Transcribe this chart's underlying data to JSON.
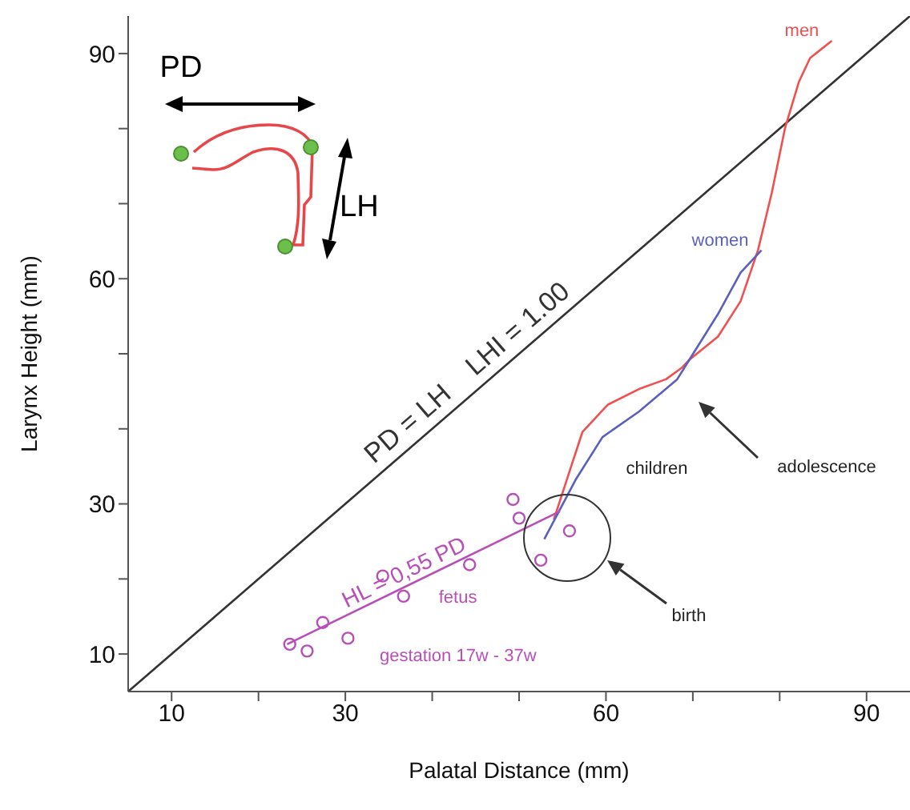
{
  "chart_data": {
    "type": "line",
    "xlabel": "Palatal Distance (mm)",
    "ylabel": "Larynx Height (mm)",
    "xlim": [
      5,
      95
    ],
    "ylim": [
      5,
      95
    ],
    "xticks": [
      10,
      {
        "value": 20,
        "label": null
      },
      30,
      {
        "value": 40,
        "label": null
      },
      {
        "value": 50,
        "label": null
      },
      60,
      {
        "value": 70,
        "label": null
      },
      {
        "value": 80,
        "label": null
      },
      90
    ],
    "yticks": [
      10,
      {
        "value": 20,
        "label": null
      },
      30,
      {
        "value": 40,
        "label": null
      },
      {
        "value": 50,
        "label": null
      },
      60,
      {
        "value": 70,
        "label": null
      },
      {
        "value": 80,
        "label": null
      },
      90
    ],
    "series": [
      {
        "name": "PD = LH    LHI = 1.00",
        "color": "#333333",
        "x": [
          5,
          95
        ],
        "values": [
          5,
          95
        ]
      },
      {
        "name": "men",
        "color": "#f0504f",
        "x": [
          54,
          55.6,
          57.3,
          60.2,
          63.8,
          66.9,
          68.7,
          69.6,
          72.9,
          75.5,
          77.5,
          79.1,
          80.6,
          82.2,
          83.5,
          86
        ],
        "values": [
          27.9,
          33.6,
          39.6,
          43.2,
          45.3,
          46.6,
          48.1,
          49.2,
          52.3,
          57,
          63.8,
          71.5,
          80,
          86.2,
          89.4,
          91.7
        ]
      },
      {
        "name": "women",
        "color": "#5a5fc0",
        "x": [
          52.9,
          56.5,
          59.6,
          63.8,
          68.2,
          69.6,
          72.9,
          75.5,
          77.9
        ],
        "values": [
          25.3,
          33.2,
          38.9,
          42.3,
          46.6,
          49.2,
          55.3,
          60.8,
          63.8
        ]
      },
      {
        "name": "fetus",
        "type": "scatter",
        "marker": "circle",
        "color": "#b84fb8",
        "x": [
          23.6,
          25.6,
          27.4,
          30.3,
          34.3,
          36.7,
          44.3,
          49.3,
          50,
          52.5,
          55.8
        ],
        "values": [
          11.3,
          10.4,
          14.2,
          12.1,
          20.4,
          17.7,
          21.9,
          30.6,
          28.1,
          22.5,
          26.4
        ]
      },
      {
        "name": "HL = 0,55 PD",
        "color": "#b84fb8",
        "x": [
          23.3,
          54.7
        ],
        "values": [
          11.3,
          29
        ]
      }
    ],
    "annotations": [
      "PD",
      "LH",
      "children",
      "gestation 17w - 37w",
      "adolescence",
      "birth"
    ]
  }
}
